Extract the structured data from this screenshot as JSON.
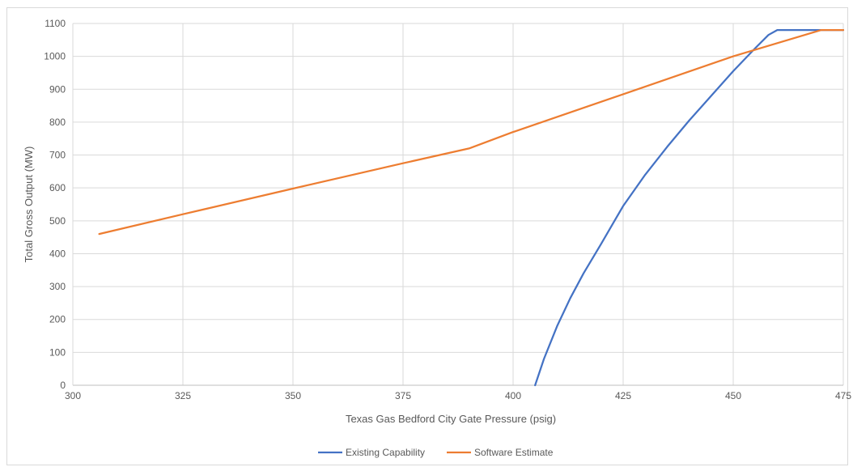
{
  "chart_data": {
    "type": "line",
    "title": "",
    "xlabel": "Texas Gas Bedford City Gate Pressure (psig)",
    "ylabel": "Total Gross Output (MW)",
    "xlim": [
      300,
      475
    ],
    "ylim": [
      0,
      1100
    ],
    "xticks": [
      "300",
      "325",
      "350",
      "375",
      "400",
      "425",
      "450",
      "475"
    ],
    "yticks": [
      "0",
      "100",
      "200",
      "300",
      "400",
      "500",
      "600",
      "700",
      "800",
      "900",
      "1000",
      "1100"
    ],
    "grid": true,
    "legend_position": "bottom",
    "series": [
      {
        "name": "Existing Capability",
        "color": "#4472C4",
        "x": [
          405,
          407,
          410,
          413,
          416,
          420,
          425,
          430,
          435,
          440,
          445,
          450,
          455,
          458,
          460,
          462,
          465,
          470,
          475
        ],
        "y": [
          0,
          80,
          180,
          265,
          340,
          430,
          545,
          640,
          725,
          805,
          880,
          955,
          1025,
          1065,
          1080,
          1080,
          1080,
          1080,
          1080
        ]
      },
      {
        "name": "Software Estimate",
        "color": "#ED7D31",
        "x": [
          306,
          325,
          350,
          375,
          390,
          400,
          425,
          450,
          470,
          475
        ],
        "y": [
          460,
          520,
          598,
          675,
          720,
          770,
          885,
          1000,
          1080,
          1080
        ]
      }
    ]
  }
}
